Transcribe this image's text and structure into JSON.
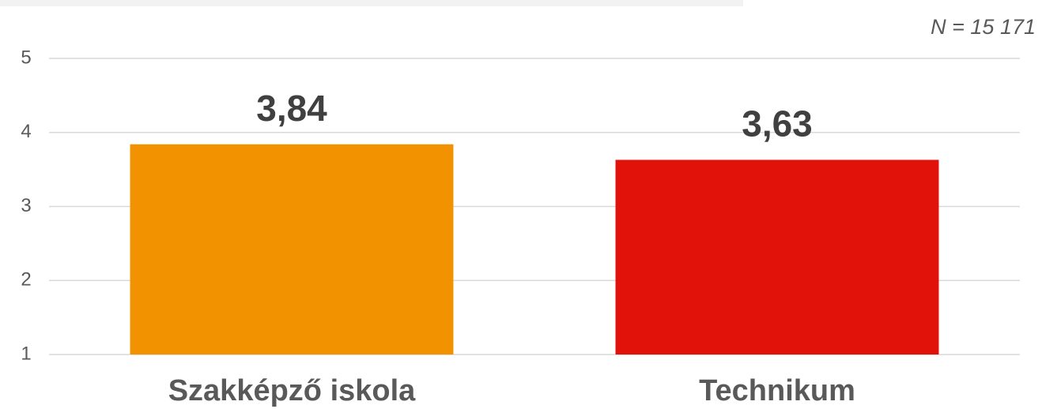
{
  "chart_data": {
    "type": "bar",
    "annotation": "N = 15 171",
    "categories": [
      "Szakképző iskola",
      "Technikum"
    ],
    "values": [
      3.84,
      3.63
    ],
    "value_labels": [
      "3,84",
      "3,63"
    ],
    "colors": [
      "#f39200",
      "#e1120a"
    ],
    "ylim": [
      1,
      5
    ],
    "yticks": [
      1,
      2,
      3,
      4,
      5
    ],
    "grid": true
  }
}
